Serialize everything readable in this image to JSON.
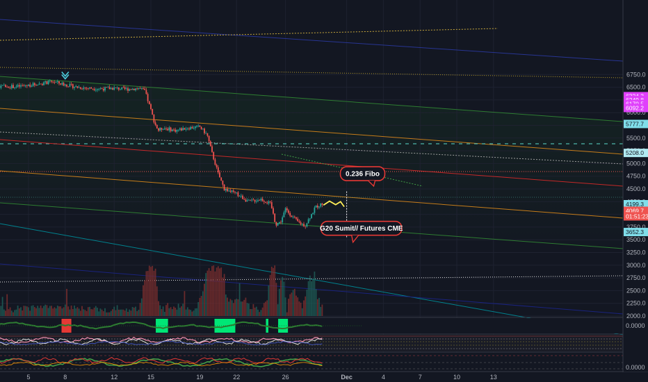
{
  "chart_data": {
    "type": "candlestick",
    "y_axis_ticks": [
      2000,
      2250,
      2500,
      2750,
      3000,
      3250,
      3500,
      3750,
      4000,
      4250,
      4500,
      4750,
      5000,
      5250,
      5500,
      5750,
      6000,
      6250,
      6500,
      6750
    ],
    "x_axis": {
      "ticks": [
        {
          "label": "5",
          "day": 5
        },
        {
          "label": "8",
          "day": 8
        },
        {
          "label": "12",
          "day": 12
        },
        {
          "label": "15",
          "day": 15
        },
        {
          "label": "19",
          "day": 19
        },
        {
          "label": "22",
          "day": 22
        },
        {
          "label": "26",
          "day": 26
        },
        {
          "label": "Dec",
          "day": 31,
          "bold": true
        },
        {
          "label": "4",
          "day": 34
        },
        {
          "label": "7",
          "day": 37
        },
        {
          "label": "10",
          "day": 40
        },
        {
          "label": "13",
          "day": 43
        }
      ]
    },
    "price_path": [
      [
        0,
        6460
      ],
      [
        1,
        6470
      ],
      [
        2,
        6500
      ],
      [
        3,
        6520
      ],
      [
        4,
        6510
      ],
      [
        5,
        6540
      ],
      [
        6,
        6570
      ],
      [
        7,
        6610
      ],
      [
        8,
        6550
      ],
      [
        9,
        6500
      ],
      [
        10,
        6480
      ],
      [
        11,
        6470
      ],
      [
        12,
        6480
      ],
      [
        13,
        6460
      ],
      [
        14,
        6480
      ],
      [
        14.5,
        6430
      ],
      [
        15,
        6050
      ],
      [
        15.3,
        5800
      ],
      [
        15.6,
        5650
      ],
      [
        16,
        5700
      ],
      [
        17,
        5650
      ],
      [
        18,
        5700
      ],
      [
        19,
        5720
      ],
      [
        19.6,
        5560
      ],
      [
        20,
        5200
      ],
      [
        20.5,
        4800
      ],
      [
        21,
        4500
      ],
      [
        21.5,
        4450
      ],
      [
        22,
        4400
      ],
      [
        23,
        4250
      ],
      [
        24,
        4300
      ],
      [
        24.8,
        4200
      ],
      [
        25.2,
        3800
      ],
      [
        25.6,
        3850
      ],
      [
        26,
        4100
      ],
      [
        26.4,
        4000
      ],
      [
        27,
        3850
      ],
      [
        27.6,
        3780
      ],
      [
        28,
        3950
      ],
      [
        28.5,
        4150
      ],
      [
        29,
        4200
      ]
    ],
    "projection_path": [
      [
        29.1,
        4180
      ],
      [
        29.6,
        4260
      ],
      [
        30.1,
        4190
      ],
      [
        30.5,
        4250
      ],
      [
        30.8,
        4150
      ]
    ],
    "price_labels": [
      {
        "value": 6324.3,
        "text": "6324.3",
        "bg": "#e040fb",
        "fg": "#ffffff"
      },
      {
        "value": 6249.8,
        "text": "6249.8",
        "bg": "#e040fb",
        "fg": "#ffffff"
      },
      {
        "value": 6170.5,
        "text": "6170.5",
        "bg": "#e040fb",
        "fg": "#ffffff"
      },
      {
        "value": 6092.2,
        "text": "6092.2",
        "bg": "#e040fb",
        "fg": "#ffffff"
      },
      {
        "value": 5777.7,
        "text": "5777.7",
        "bg": "#80deea",
        "fg": "#131722"
      },
      {
        "value": 5208.0,
        "text": "5208.0",
        "bg": "#b2ebf2",
        "fg": "#131722"
      },
      {
        "value": 4199.3,
        "text": "4199.3",
        "bg": "#80deea",
        "fg": "#131722"
      },
      {
        "value": 4069.7,
        "text": "4069.7",
        "bg": "#ef5350",
        "fg": "#ffffff"
      },
      {
        "value": 3960,
        "text": "01:51:23",
        "bg": "#ef5350",
        "fg": "#ffffff"
      },
      {
        "value": 3652.3,
        "text": "3652.3",
        "bg": "#80deea",
        "fg": "#131722"
      }
    ],
    "annotations": [
      {
        "text": "0.236 Fibo",
        "day": 32.3,
        "value": 4800
      },
      {
        "text": "G20 Sumit// Futures CME",
        "day": 32.2,
        "value": 3725
      }
    ],
    "indicator_values": [
      "0.0000",
      "0.0000"
    ],
    "colors": {
      "up": "#26a69a",
      "down": "#ef5350",
      "background": "#131722"
    }
  }
}
